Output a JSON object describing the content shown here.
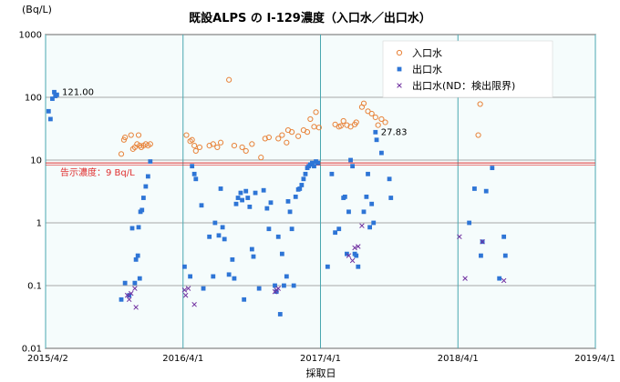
{
  "chart_data": {
    "type": "scatter",
    "title": "既設ALPS の I-129濃度（入口水／出口水）",
    "ylabel": "(Bq/L)",
    "xlabel": "採取日",
    "y_scale": "log",
    "ylim": [
      0.01,
      1000
    ],
    "y_ticks": [
      "0.01",
      "0.1",
      "1",
      "10",
      "100",
      "1000"
    ],
    "xlim": [
      "2015-04-02",
      "2019-04-01"
    ],
    "x_ticks": [
      "2015/4/2",
      "2016/4/1",
      "2017/4/1",
      "2018/4/1",
      "2019/4/1"
    ],
    "grid": true,
    "legend_position": "top-right",
    "reference_line": {
      "value": 9,
      "label": "告示濃度：9 Bq/L",
      "color": "#e03030"
    },
    "annotations": [
      {
        "text": "121.00",
        "x": "2015-05-01",
        "y": 121
      },
      {
        "text": "27.83",
        "x": "2017-08-25",
        "y": 27.83
      }
    ],
    "series": [
      {
        "name": "入口水",
        "marker": "circle-open",
        "color": "#e8833a",
        "points": [
          [
            "2015-10-20",
            12.5
          ],
          [
            "2015-10-27",
            21
          ],
          [
            "2015-10-30",
            23
          ],
          [
            "2015-11-15",
            25
          ],
          [
            "2015-11-20",
            15
          ],
          [
            "2015-11-25",
            16
          ],
          [
            "2015-12-01",
            18
          ],
          [
            "2015-12-05",
            25
          ],
          [
            "2015-12-08",
            17
          ],
          [
            "2015-12-12",
            16
          ],
          [
            "2015-12-18",
            17
          ],
          [
            "2015-12-24",
            18
          ],
          [
            "2015-12-30",
            17
          ],
          [
            "2016-01-05",
            18
          ],
          [
            "2016-04-10",
            25
          ],
          [
            "2016-04-20",
            20
          ],
          [
            "2016-04-25",
            21
          ],
          [
            "2016-05-01",
            17
          ],
          [
            "2016-05-05",
            14
          ],
          [
            "2016-05-15",
            16
          ],
          [
            "2016-06-10",
            17
          ],
          [
            "2016-06-20",
            18
          ],
          [
            "2016-07-01",
            16
          ],
          [
            "2016-07-10",
            19
          ],
          [
            "2016-08-01",
            190
          ],
          [
            "2016-08-15",
            17
          ],
          [
            "2016-09-05",
            16
          ],
          [
            "2016-09-15",
            14
          ],
          [
            "2016-10-01",
            18
          ],
          [
            "2016-10-25",
            11
          ],
          [
            "2016-11-05",
            22
          ],
          [
            "2016-11-15",
            23
          ],
          [
            "2016-12-10",
            22
          ],
          [
            "2016-12-20",
            25
          ],
          [
            "2017-01-01",
            19
          ],
          [
            "2017-01-05",
            30
          ],
          [
            "2017-01-15",
            28
          ],
          [
            "2017-02-01",
            24
          ],
          [
            "2017-02-15",
            30
          ],
          [
            "2017-02-25",
            28
          ],
          [
            "2017-03-05",
            45
          ],
          [
            "2017-03-15",
            34
          ],
          [
            "2017-03-20",
            58
          ],
          [
            "2017-03-28",
            33
          ],
          [
            "2017-05-10",
            37
          ],
          [
            "2017-05-20",
            34
          ],
          [
            "2017-05-25",
            35
          ],
          [
            "2017-06-01",
            42
          ],
          [
            "2017-06-10",
            36
          ],
          [
            "2017-06-20",
            34
          ],
          [
            "2017-07-01",
            37
          ],
          [
            "2017-07-05",
            40
          ],
          [
            "2017-07-20",
            70
          ],
          [
            "2017-07-25",
            80
          ],
          [
            "2017-08-05",
            60
          ],
          [
            "2017-08-15",
            55
          ],
          [
            "2017-08-25",
            48
          ],
          [
            "2017-09-01",
            36
          ],
          [
            "2017-09-10",
            45
          ],
          [
            "2017-09-20",
            40
          ],
          [
            "2018-05-25",
            25
          ],
          [
            "2018-05-30",
            78
          ]
        ]
      },
      {
        "name": "出口水",
        "marker": "square-filled",
        "color": "#2e75d6",
        "points": [
          [
            "2015-04-10",
            60
          ],
          [
            "2015-04-15",
            45
          ],
          [
            "2015-04-20",
            95
          ],
          [
            "2015-04-25",
            121
          ],
          [
            "2015-04-28",
            105
          ],
          [
            "2015-05-02",
            110
          ],
          [
            "2015-10-20",
            0.06
          ],
          [
            "2015-10-30",
            0.11
          ],
          [
            "2015-11-10",
            0.07
          ],
          [
            "2015-11-18",
            0.82
          ],
          [
            "2015-11-25",
            0.11
          ],
          [
            "2015-11-28",
            0.26
          ],
          [
            "2015-12-03",
            0.3
          ],
          [
            "2015-12-05",
            0.85
          ],
          [
            "2015-12-08",
            0.13
          ],
          [
            "2015-12-10",
            1.5
          ],
          [
            "2015-12-14",
            1.6
          ],
          [
            "2015-12-18",
            2.5
          ],
          [
            "2015-12-24",
            3.8
          ],
          [
            "2015-12-30",
            5.5
          ],
          [
            "2016-01-05",
            9.5
          ],
          [
            "2016-04-05",
            0.2
          ],
          [
            "2016-04-20",
            0.14
          ],
          [
            "2016-04-25",
            8
          ],
          [
            "2016-05-01",
            6
          ],
          [
            "2016-05-05",
            5
          ],
          [
            "2016-05-20",
            1.9
          ],
          [
            "2016-05-25",
            0.09
          ],
          [
            "2016-06-10",
            0.6
          ],
          [
            "2016-06-20",
            0.14
          ],
          [
            "2016-06-25",
            1
          ],
          [
            "2016-07-05",
            0.63
          ],
          [
            "2016-07-10",
            3.5
          ],
          [
            "2016-07-15",
            0.85
          ],
          [
            "2016-07-20",
            0.55
          ],
          [
            "2016-08-01",
            0.15
          ],
          [
            "2016-08-10",
            0.26
          ],
          [
            "2016-08-15",
            0.13
          ],
          [
            "2016-08-20",
            2
          ],
          [
            "2016-08-25",
            2.5
          ],
          [
            "2016-09-01",
            3
          ],
          [
            "2016-09-05",
            2.3
          ],
          [
            "2016-09-10",
            0.06
          ],
          [
            "2016-09-15",
            3.2
          ],
          [
            "2016-09-20",
            2.5
          ],
          [
            "2016-09-25",
            1.8
          ],
          [
            "2016-10-01",
            0.38
          ],
          [
            "2016-10-05",
            0.29
          ],
          [
            "2016-10-10",
            3
          ],
          [
            "2016-10-20",
            0.09
          ],
          [
            "2016-11-01",
            3.3
          ],
          [
            "2016-11-10",
            1.7
          ],
          [
            "2016-11-15",
            0.8
          ],
          [
            "2016-11-20",
            2.1
          ],
          [
            "2016-12-01",
            0.1
          ],
          [
            "2016-12-05",
            0.08
          ],
          [
            "2016-12-10",
            0.6
          ],
          [
            "2016-12-15",
            0.035
          ],
          [
            "2016-12-20",
            0.32
          ],
          [
            "2016-12-25",
            0.1
          ],
          [
            "2017-01-01",
            0.14
          ],
          [
            "2017-01-05",
            2.2
          ],
          [
            "2017-01-10",
            1.5
          ],
          [
            "2017-01-15",
            0.8
          ],
          [
            "2017-01-20",
            0.1
          ],
          [
            "2017-01-25",
            2.6
          ],
          [
            "2017-02-01",
            3.4
          ],
          [
            "2017-02-05",
            3.5
          ],
          [
            "2017-02-10",
            4
          ],
          [
            "2017-02-15",
            5
          ],
          [
            "2017-02-20",
            6
          ],
          [
            "2017-02-25",
            7.5
          ],
          [
            "2017-03-01",
            8
          ],
          [
            "2017-03-05",
            8.5
          ],
          [
            "2017-03-10",
            9
          ],
          [
            "2017-03-15",
            8
          ],
          [
            "2017-03-20",
            9.5
          ],
          [
            "2017-03-25",
            9
          ],
          [
            "2017-04-20",
            0.2
          ],
          [
            "2017-05-01",
            6
          ],
          [
            "2017-05-10",
            0.7
          ],
          [
            "2017-05-20",
            0.8
          ],
          [
            "2017-06-01",
            2.5
          ],
          [
            "2017-06-05",
            2.6
          ],
          [
            "2017-06-10",
            0.32
          ],
          [
            "2017-06-15",
            1.5
          ],
          [
            "2017-06-20",
            10
          ],
          [
            "2017-06-25",
            8
          ],
          [
            "2017-07-01",
            0.32
          ],
          [
            "2017-07-05",
            0.3
          ],
          [
            "2017-07-10",
            0.2
          ],
          [
            "2017-07-25",
            1.5
          ],
          [
            "2017-08-01",
            2.6
          ],
          [
            "2017-08-05",
            6
          ],
          [
            "2017-08-10",
            0.85
          ],
          [
            "2017-08-15",
            2
          ],
          [
            "2017-08-20",
            1
          ],
          [
            "2017-08-25",
            27.83
          ],
          [
            "2017-08-28",
            21
          ],
          [
            "2017-09-10",
            13
          ],
          [
            "2017-10-01",
            5
          ],
          [
            "2017-10-05",
            2.5
          ],
          [
            "2018-05-01",
            1
          ],
          [
            "2018-05-15",
            3.5
          ],
          [
            "2018-06-01",
            0.3
          ],
          [
            "2018-06-05",
            0.5
          ],
          [
            "2018-06-15",
            3.2
          ],
          [
            "2018-07-01",
            7.5
          ],
          [
            "2018-07-20",
            0.13
          ],
          [
            "2018-08-01",
            0.6
          ],
          [
            "2018-08-05",
            0.3
          ]
        ]
      },
      {
        "name": "出口水(ND：検出限界)",
        "marker": "x",
        "color": "#7030a0",
        "points": [
          [
            "2015-11-05",
            0.07
          ],
          [
            "2015-11-10",
            0.06
          ],
          [
            "2015-11-15",
            0.075
          ],
          [
            "2015-11-25",
            0.09
          ],
          [
            "2015-11-28",
            0.045
          ],
          [
            "2016-04-05",
            0.085
          ],
          [
            "2016-04-08",
            0.07
          ],
          [
            "2016-04-15",
            0.09
          ],
          [
            "2016-05-01",
            0.05
          ],
          [
            "2016-12-01",
            0.08
          ],
          [
            "2016-12-05",
            0.085
          ],
          [
            "2016-12-10",
            0.09
          ],
          [
            "2017-06-15",
            0.3
          ],
          [
            "2017-06-25",
            0.25
          ],
          [
            "2017-07-01",
            0.4
          ],
          [
            "2017-07-10",
            0.42
          ],
          [
            "2017-07-20",
            0.9
          ],
          [
            "2018-04-05",
            0.6
          ],
          [
            "2018-04-20",
            0.13
          ],
          [
            "2018-06-05",
            0.5
          ],
          [
            "2018-08-01",
            0.12
          ]
        ]
      }
    ]
  }
}
